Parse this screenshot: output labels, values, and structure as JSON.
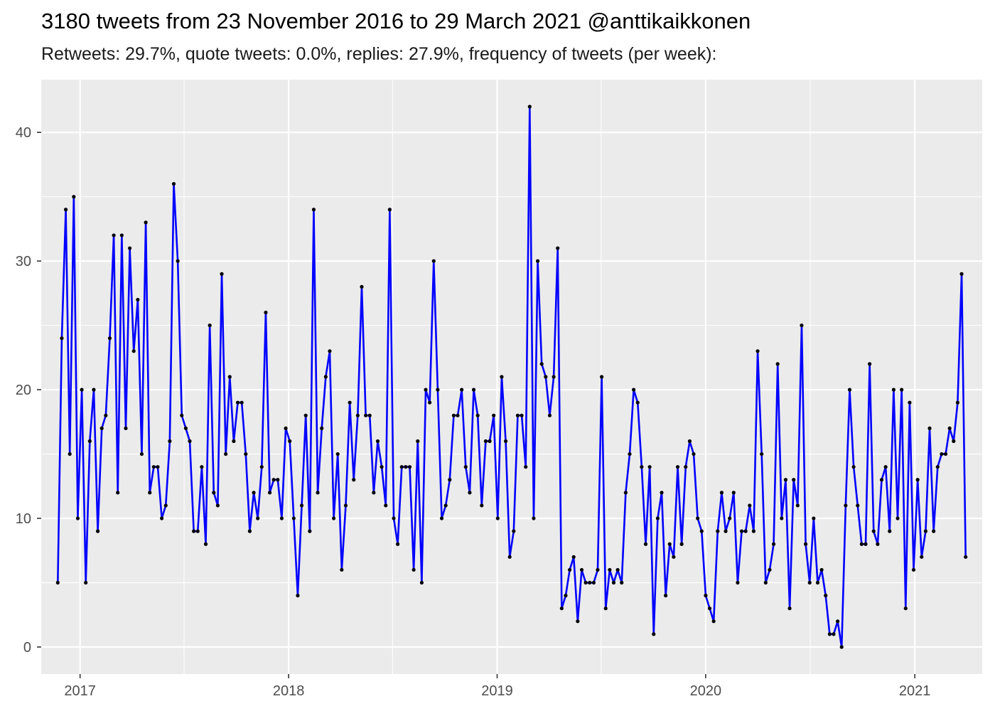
{
  "title": "3180 tweets from 23 November 2016 to 29 March 2021 @anttikaikkonen",
  "subtitle": "Retweets: 29.7%, quote tweets: 0.0%, replies: 27.9%, frequency of tweets (per week):",
  "chart_data": {
    "type": "line",
    "title": "3180 tweets from 23 November 2016 to 29 March 2021 @anttikaikkonen",
    "subtitle": "Retweets: 29.7%, quote tweets: 0.0%, replies: 27.9%, frequency of tweets (per week):",
    "xlabel": "",
    "ylabel": "",
    "x_ticks": [
      "2017",
      "2018",
      "2019",
      "2020",
      "2021"
    ],
    "y_ticks": [
      0,
      10,
      20,
      30,
      40
    ],
    "xlim": [
      "2016-10-25",
      "2021-04-29"
    ],
    "ylim": [
      -2.1,
      44.1
    ],
    "grid": true,
    "line_color": "#0000ff",
    "point_color": "#000000",
    "panel_background": "#ebebeb",
    "start_date": "2016-11-23",
    "interval_days": 7,
    "values": [
      5,
      24,
      34,
      15,
      35,
      10,
      20,
      5,
      16,
      20,
      9,
      17,
      18,
      24,
      32,
      12,
      32,
      17,
      31,
      23,
      27,
      15,
      33,
      12,
      14,
      14,
      10,
      11,
      16,
      36,
      30,
      18,
      17,
      16,
      9,
      9,
      14,
      8,
      25,
      12,
      11,
      29,
      15,
      21,
      16,
      19,
      19,
      15,
      9,
      12,
      10,
      14,
      26,
      12,
      13,
      13,
      10,
      17,
      16,
      10,
      4,
      11,
      18,
      9,
      34,
      12,
      17,
      21,
      23,
      10,
      15,
      6,
      11,
      19,
      13,
      18,
      28,
      18,
      18,
      12,
      16,
      14,
      11,
      34,
      10,
      8,
      14,
      14,
      14,
      6,
      16,
      5,
      20,
      19,
      30,
      20,
      10,
      11,
      13,
      18,
      18,
      20,
      14,
      12,
      20,
      18,
      11,
      16,
      16,
      18,
      10,
      21,
      16,
      7,
      9,
      18,
      18,
      14,
      42,
      10,
      30,
      22,
      21,
      18,
      21,
      31,
      3,
      4,
      6,
      7,
      2,
      6,
      5,
      5,
      5,
      6,
      21,
      3,
      6,
      5,
      6,
      5,
      12,
      15,
      20,
      19,
      14,
      8,
      14,
      1,
      10,
      12,
      4,
      8,
      7,
      14,
      8,
      14,
      16,
      15,
      10,
      9,
      4,
      3,
      2,
      9,
      12,
      9,
      10,
      12,
      5,
      9,
      9,
      11,
      9,
      23,
      15,
      5,
      6,
      8,
      22,
      10,
      13,
      3,
      13,
      11,
      25,
      8,
      5,
      10,
      5,
      6,
      4,
      1,
      1,
      2,
      0,
      11,
      20,
      14,
      11,
      8,
      8,
      22,
      9,
      8,
      13,
      14,
      9,
      20,
      10,
      20,
      3,
      19,
      6,
      13,
      7,
      9,
      17,
      9,
      14,
      15,
      15,
      17,
      16,
      19,
      29,
      7
    ]
  }
}
